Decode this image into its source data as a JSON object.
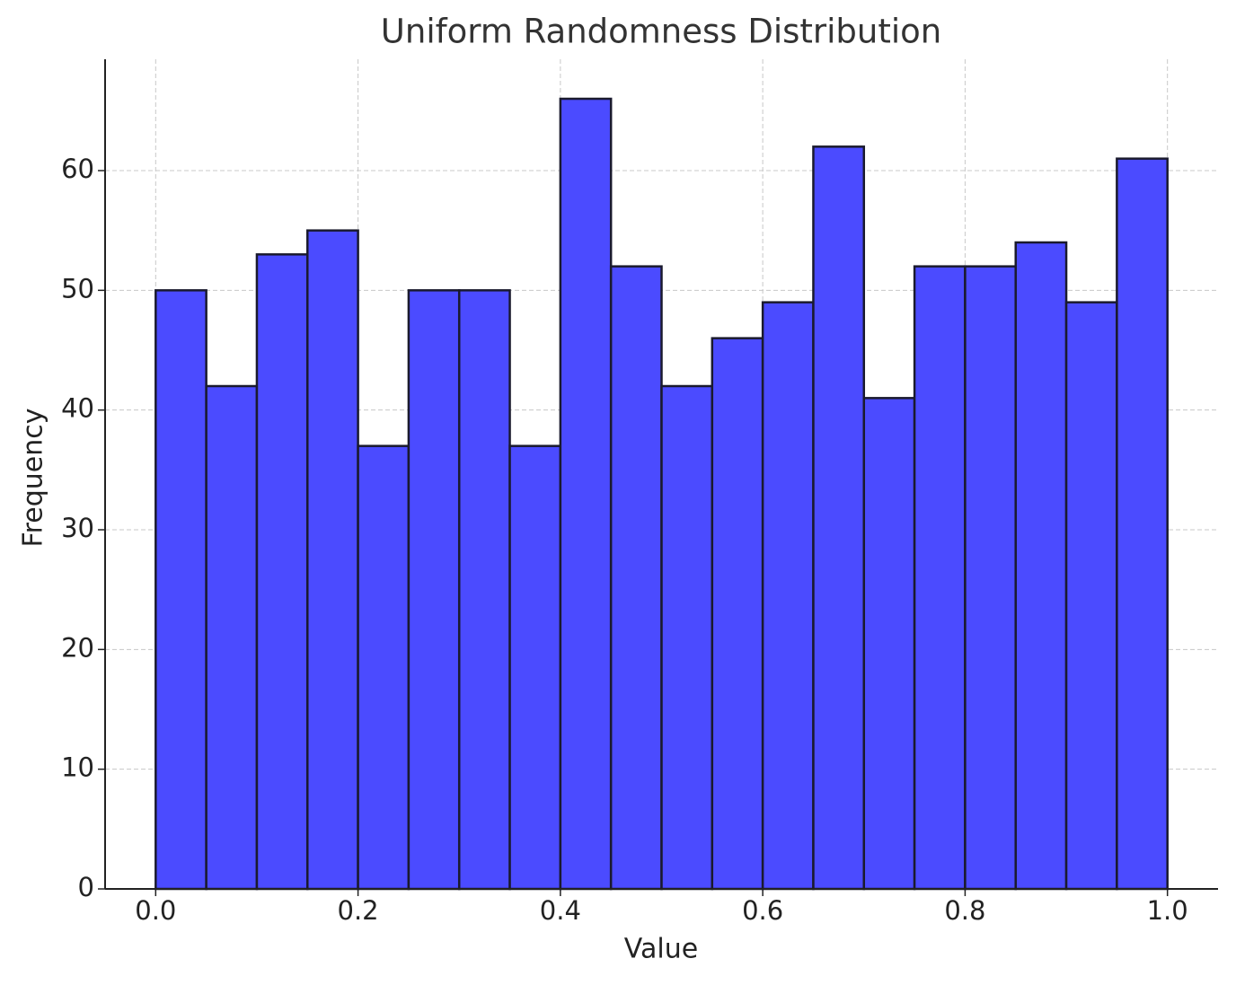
{
  "chart_data": {
    "type": "histogram",
    "title": "Uniform Randomness Distribution",
    "x_label": "Value",
    "y_label": "Frequency",
    "bins": [
      0,
      0.05,
      0.1,
      0.15,
      0.2,
      0.25,
      0.3,
      0.35,
      0.4,
      0.45,
      0.5,
      0.55,
      0.6,
      0.65,
      0.7,
      0.75,
      0.8,
      0.85,
      0.9,
      0.95,
      1
    ],
    "values": [
      50,
      42,
      53,
      55,
      37,
      50,
      50,
      37,
      66,
      52,
      42,
      46,
      49,
      62,
      41,
      52,
      52,
      54,
      49,
      61
    ],
    "color": "#4b4bff",
    "edgecolor": "#1a1a2e",
    "xlim": [
      -0.05,
      1.05
    ],
    "ylim": [
      0,
      69.3
    ],
    "xticks": [
      {
        "value": 0,
        "label": "0.0"
      },
      {
        "value": 0.2,
        "label": "0.2"
      },
      {
        "value": 0.4,
        "label": "0.4"
      },
      {
        "value": 0.6,
        "label": "0.6"
      },
      {
        "value": 0.8,
        "label": "0.8"
      },
      {
        "value": 1,
        "label": "1.0"
      }
    ],
    "yticks": [
      0,
      10,
      20,
      30,
      40,
      50,
      60
    ],
    "grid": true
  }
}
